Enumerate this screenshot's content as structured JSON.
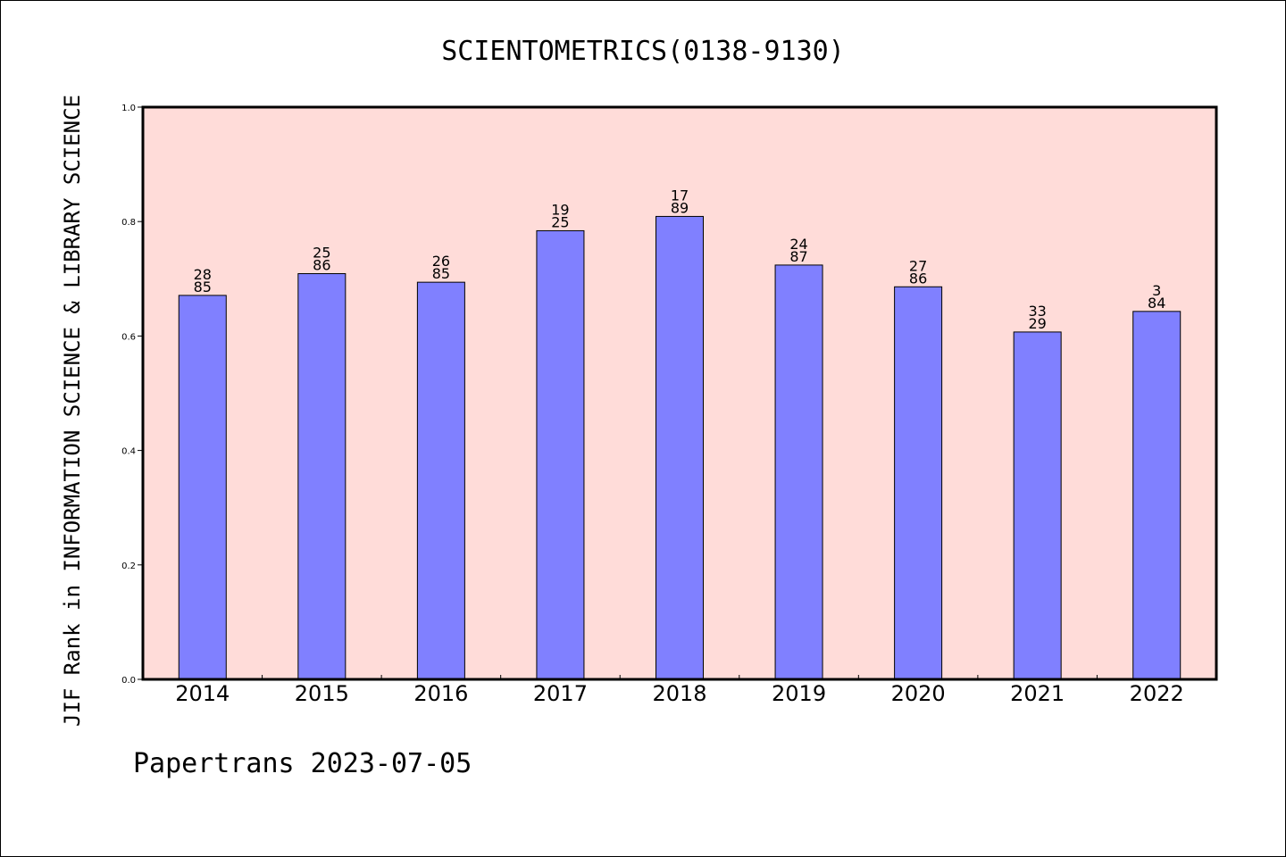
{
  "chart_data": {
    "type": "bar",
    "title": "SCIENTOMETRICS(0138-9130)",
    "ylabel": "JIF Rank in INFORMATION SCIENCE & LIBRARY SCIENCE",
    "xlabel": "",
    "categories": [
      "2014",
      "2015",
      "2016",
      "2017",
      "2018",
      "2019",
      "2020",
      "2021",
      "2022"
    ],
    "values": [
      0.671,
      0.709,
      0.694,
      0.784,
      0.809,
      0.724,
      0.686,
      0.607,
      0.643
    ],
    "labels": [
      [
        "28",
        "85"
      ],
      [
        "25",
        "86"
      ],
      [
        "26",
        "85"
      ],
      [
        "19",
        "25"
      ],
      [
        "17",
        "89"
      ],
      [
        "24",
        "87"
      ],
      [
        "27",
        "86"
      ],
      [
        "33",
        "29"
      ],
      [
        "3",
        "84"
      ]
    ],
    "yticks": [
      "0.0",
      "0.2",
      "0.4",
      "0.6",
      "0.8",
      "1.0"
    ],
    "ylim": [
      0,
      1
    ],
    "grid": false,
    "legend": "none",
    "colors": {
      "plot_background": "#ffdcd9",
      "bar_fill": "#8080ff",
      "bar_stroke": "#000000"
    }
  },
  "footer": {
    "text": "Papertrans 2023-07-05"
  }
}
